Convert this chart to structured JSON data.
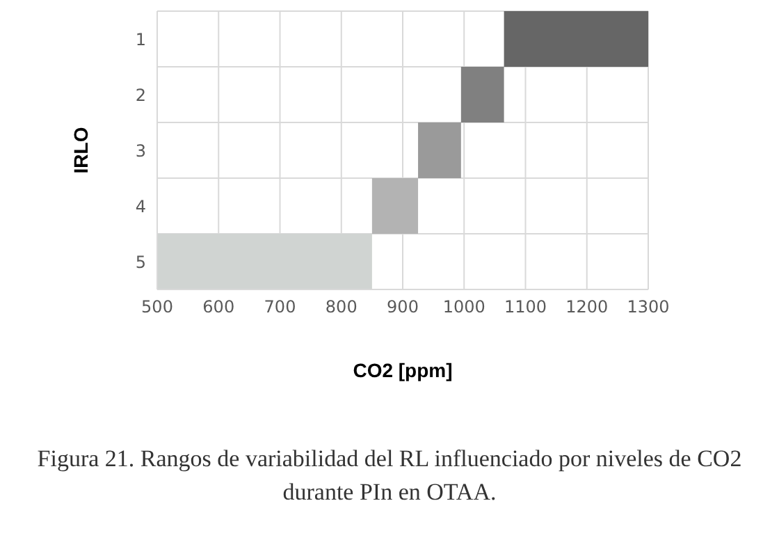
{
  "chart_data": {
    "type": "bar",
    "orientation": "horizontal",
    "title": "Figura 21. Rangos de variabilidad del RL influenciado por niveles de CO2 durante PIn en OTAA.",
    "xlabel": "CO2 [ppm]",
    "ylabel": "IRLO",
    "categories": [
      "1",
      "2",
      "3",
      "4",
      "5"
    ],
    "base": [
      1065,
      995,
      925,
      850,
      500
    ],
    "values": [
      235,
      70,
      70,
      75,
      350
    ],
    "colors": [
      "#666666",
      "#808080",
      "#9a9a9a",
      "#b3b3b3",
      "#d0d4d2"
    ],
    "xlim": [
      500,
      1300
    ],
    "xticks": [
      500,
      600,
      700,
      800,
      900,
      1000,
      1100,
      1200,
      1300
    ],
    "grid": true
  }
}
